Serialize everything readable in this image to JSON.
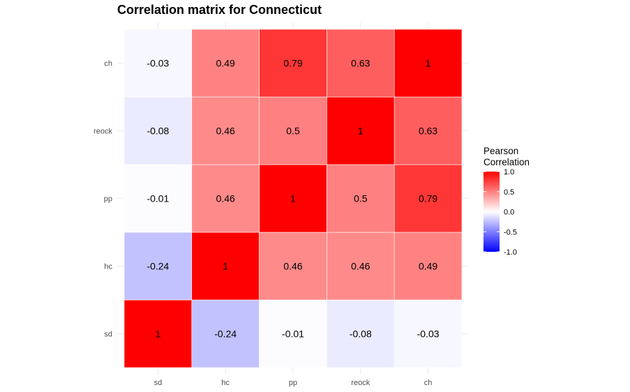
{
  "chart_data": {
    "type": "heatmap",
    "title": "Correlation matrix for Connecticut",
    "x_categories": [
      "sd",
      "hc",
      "pp",
      "reock",
      "ch"
    ],
    "y_categories": [
      "sd",
      "hc",
      "pp",
      "reock",
      "ch"
    ],
    "cells": [
      {
        "x": "sd",
        "y": "sd",
        "value": 1,
        "label": "1"
      },
      {
        "x": "hc",
        "y": "sd",
        "value": -0.24,
        "label": "-0.24"
      },
      {
        "x": "pp",
        "y": "sd",
        "value": -0.01,
        "label": "-0.01"
      },
      {
        "x": "reock",
        "y": "sd",
        "value": -0.08,
        "label": "-0.08"
      },
      {
        "x": "ch",
        "y": "sd",
        "value": -0.03,
        "label": "-0.03"
      },
      {
        "x": "sd",
        "y": "hc",
        "value": -0.24,
        "label": "-0.24"
      },
      {
        "x": "hc",
        "y": "hc",
        "value": 1,
        "label": "1"
      },
      {
        "x": "pp",
        "y": "hc",
        "value": 0.46,
        "label": "0.46"
      },
      {
        "x": "reock",
        "y": "hc",
        "value": 0.46,
        "label": "0.46"
      },
      {
        "x": "ch",
        "y": "hc",
        "value": 0.49,
        "label": "0.49"
      },
      {
        "x": "sd",
        "y": "pp",
        "value": -0.01,
        "label": "-0.01"
      },
      {
        "x": "hc",
        "y": "pp",
        "value": 0.46,
        "label": "0.46"
      },
      {
        "x": "pp",
        "y": "pp",
        "value": 1,
        "label": "1"
      },
      {
        "x": "reock",
        "y": "pp",
        "value": 0.5,
        "label": "0.5"
      },
      {
        "x": "ch",
        "y": "pp",
        "value": 0.79,
        "label": "0.79"
      },
      {
        "x": "sd",
        "y": "reock",
        "value": -0.08,
        "label": "-0.08"
      },
      {
        "x": "hc",
        "y": "reock",
        "value": 0.46,
        "label": "0.46"
      },
      {
        "x": "pp",
        "y": "reock",
        "value": 0.5,
        "label": "0.5"
      },
      {
        "x": "reock",
        "y": "reock",
        "value": 1,
        "label": "1"
      },
      {
        "x": "ch",
        "y": "reock",
        "value": 0.63,
        "label": "0.63"
      },
      {
        "x": "sd",
        "y": "ch",
        "value": -0.03,
        "label": "-0.03"
      },
      {
        "x": "hc",
        "y": "ch",
        "value": 0.49,
        "label": "0.49"
      },
      {
        "x": "pp",
        "y": "ch",
        "value": 0.79,
        "label": "0.79"
      },
      {
        "x": "reock",
        "y": "ch",
        "value": 0.63,
        "label": "0.63"
      },
      {
        "x": "ch",
        "y": "ch",
        "value": 1,
        "label": "1"
      }
    ],
    "legend": {
      "title_line1": "Pearson",
      "title_line2": "Correlation",
      "range": [
        -1,
        1
      ],
      "ticks": [
        {
          "value": 1,
          "label": "1.0"
        },
        {
          "value": 0.5,
          "label": "0.5"
        },
        {
          "value": 0,
          "label": "0.0"
        },
        {
          "value": -0.5,
          "label": "-0.5"
        },
        {
          "value": -1,
          "label": "-1.0"
        }
      ],
      "placement": "right"
    },
    "color_scale": {
      "low": "#0000ff",
      "mid": "#ffffff",
      "high": "#ff0000"
    },
    "grid": true
  }
}
